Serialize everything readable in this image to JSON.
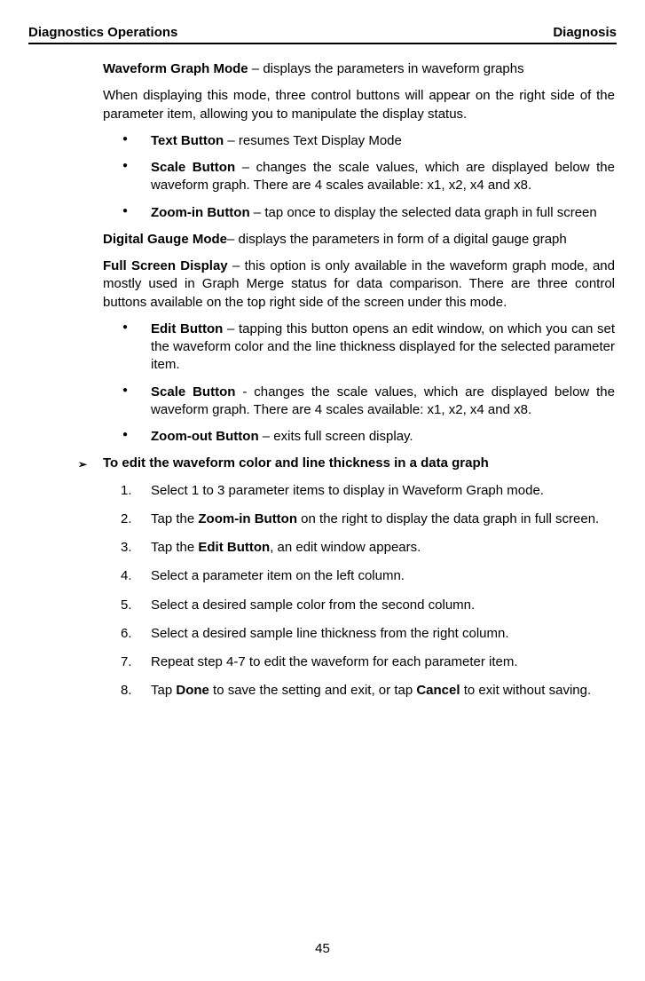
{
  "header": {
    "left": "Diagnostics Operations",
    "right": "Diagnosis"
  },
  "intro": {
    "waveform_title": "Waveform Graph Mode",
    "waveform_desc": " – displays the parameters in waveform graphs",
    "waveform_para": "When displaying this mode, three control buttons will appear on the right side of the parameter item, allowing you to manipulate the display status."
  },
  "waveform_buttons": [
    {
      "title": "Text Button",
      "desc": " – resumes Text Display Mode"
    },
    {
      "title": "Scale Button",
      "desc": " – changes the scale values, which are displayed below the waveform graph. There are 4 scales available: x1, x2, x4 and x8."
    },
    {
      "title": "Zoom-in Button",
      "desc": " – tap once to display the selected data graph in full screen"
    }
  ],
  "digital": {
    "title": "Digital Gauge Mode",
    "desc": "– displays the parameters in form of a digital gauge graph"
  },
  "fullscreen": {
    "title": "Full Screen Display",
    "desc": " – this option is only available in the waveform graph mode, and mostly used in Graph Merge status for data comparison. There are three control buttons available on the top right side of the screen under this mode."
  },
  "fullscreen_buttons": [
    {
      "title": "Edit Button",
      "desc": " – tapping this button opens an edit window, on which you can set the waveform color and the line thickness displayed for the selected parameter item."
    },
    {
      "title": "Scale Button",
      "desc": " - changes the scale values, which are displayed below the waveform graph. There are 4 scales available: x1, x2, x4 and x8."
    },
    {
      "title": "Zoom-out Button",
      "desc": " – exits full screen display."
    }
  ],
  "task": {
    "marker": "➢",
    "title": "To edit the waveform color and line thickness in a data graph"
  },
  "steps": [
    {
      "num": "1.",
      "pre": "Select 1 to 3 parameter items to display in Waveform Graph mode.",
      "bold": "",
      "post": ""
    },
    {
      "num": "2.",
      "pre": "Tap the ",
      "bold": "Zoom-in Button",
      "post": " on the right to display the data graph in full screen."
    },
    {
      "num": "3.",
      "pre": "Tap the ",
      "bold": "Edit Button",
      "post": ", an edit window appears."
    },
    {
      "num": "4.",
      "pre": "Select a parameter item on the left column.",
      "bold": "",
      "post": ""
    },
    {
      "num": "5.",
      "pre": "Select a desired sample color from the second column.",
      "bold": "",
      "post": ""
    },
    {
      "num": "6.",
      "pre": "Select a desired sample line thickness from the right column.",
      "bold": "",
      "post": ""
    },
    {
      "num": "7.",
      "pre": "Repeat step 4-7 to edit the waveform for each parameter item.",
      "bold": "",
      "post": ""
    },
    {
      "num": "8.",
      "pre": "Tap ",
      "bold": "Done",
      "post": " to save the setting and exit, or tap ",
      "bold2": "Cancel",
      "post2": " to exit without saving."
    }
  ],
  "page_number": "45"
}
